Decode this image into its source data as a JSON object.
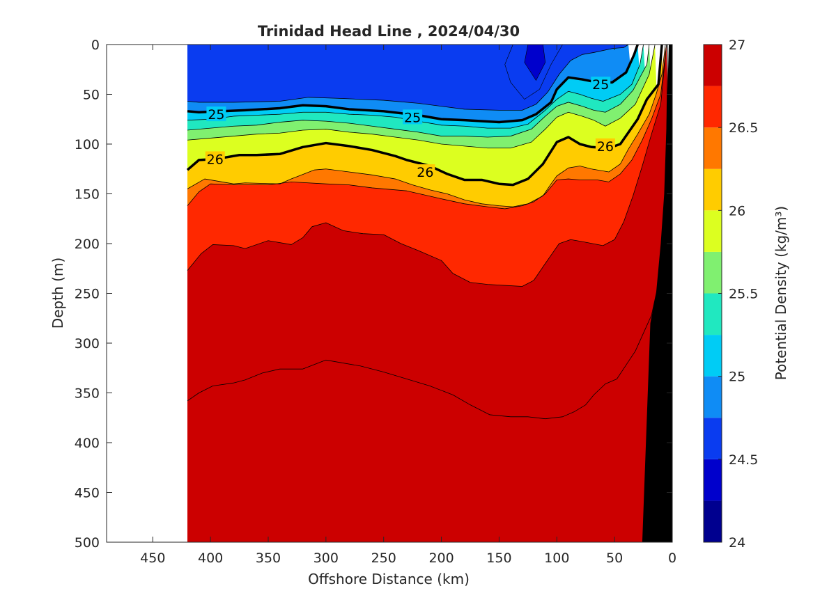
{
  "chart_data": {
    "type": "heatmap",
    "subtype": "filled-contour",
    "title": "Trinidad Head Line , 2024/04/30",
    "xlabel": "Offshore Distance (km)",
    "ylabel": "Depth (m)",
    "xlim": [
      490,
      0
    ],
    "x_reversed": true,
    "ylim": [
      0,
      500
    ],
    "y_reversed": true,
    "xticks": [
      "450",
      "400",
      "350",
      "300",
      "250",
      "200",
      "150",
      "100",
      "50",
      "0"
    ],
    "yticks": [
      "0",
      "50",
      "100",
      "150",
      "200",
      "250",
      "300",
      "350",
      "400",
      "450",
      "500"
    ],
    "data_extent_km": [
      420,
      0
    ],
    "colorbar": {
      "label": "Potential Density (kg/m³)",
      "min": 24,
      "max": 27,
      "step": 0.25,
      "ticks": [
        "24",
        "24.5",
        "25",
        "25.5",
        "26",
        "26.5",
        "27"
      ],
      "colors": [
        "#00008f",
        "#0000cc",
        "#0a3cf0",
        "#0f8cf5",
        "#00ccf5",
        "#20e8c0",
        "#80f070",
        "#dcff20",
        "#ffcc00",
        "#ff7800",
        "#ff2800",
        "#cc0000"
      ]
    },
    "labeled_contours": [
      {
        "level": 25,
        "labels": [
          {
            "text": "25",
            "x": 395,
            "y": 70
          },
          {
            "text": "25",
            "x": 225,
            "y": 73
          },
          {
            "text": "25",
            "x": 62,
            "y": 40
          }
        ]
      },
      {
        "level": 26,
        "labels": [
          {
            "text": "26",
            "x": 396,
            "y": 115
          },
          {
            "text": "26",
            "x": 214,
            "y": 128
          },
          {
            "text": "26",
            "x": 58,
            "y": 102
          }
        ]
      }
    ],
    "contours": [
      {
        "level": 24.75,
        "pts": [
          [
            420,
            57
          ],
          [
            410,
            58
          ],
          [
            380,
            58
          ],
          [
            340,
            57
          ],
          [
            315,
            53
          ],
          [
            290,
            54
          ],
          [
            250,
            56
          ],
          [
            220,
            59
          ],
          [
            180,
            65
          ],
          [
            150,
            66
          ],
          [
            130,
            66
          ],
          [
            118,
            60
          ],
          [
            108,
            48
          ],
          [
            98,
            30
          ],
          [
            88,
            16
          ],
          [
            78,
            10
          ],
          [
            68,
            8
          ],
          [
            52,
            4
          ],
          [
            42,
            3
          ],
          [
            38,
            0
          ]
        ]
      },
      {
        "level": 25.0,
        "pts": [
          [
            420,
            67
          ],
          [
            410,
            68
          ],
          [
            390,
            67
          ],
          [
            370,
            66
          ],
          [
            340,
            64
          ],
          [
            320,
            61
          ],
          [
            300,
            62
          ],
          [
            280,
            65
          ],
          [
            250,
            67
          ],
          [
            220,
            71
          ],
          [
            200,
            75
          ],
          [
            180,
            76
          ],
          [
            150,
            78
          ],
          [
            130,
            76
          ],
          [
            118,
            70
          ],
          [
            105,
            58
          ],
          [
            100,
            45
          ],
          [
            90,
            33
          ],
          [
            78,
            35
          ],
          [
            65,
            38
          ],
          [
            52,
            38
          ],
          [
            40,
            28
          ],
          [
            33,
            10
          ],
          [
            30,
            0
          ]
        ]
      },
      {
        "level": 25.25,
        "pts": [
          [
            420,
            76
          ],
          [
            400,
            75
          ],
          [
            380,
            72
          ],
          [
            360,
            71
          ],
          [
            340,
            70
          ],
          [
            320,
            68
          ],
          [
            300,
            68
          ],
          [
            280,
            70
          ],
          [
            260,
            71
          ],
          [
            240,
            73
          ],
          [
            220,
            77
          ],
          [
            200,
            81
          ],
          [
            180,
            82
          ],
          [
            160,
            84
          ],
          [
            140,
            84
          ],
          [
            125,
            80
          ],
          [
            110,
            66
          ],
          [
            100,
            55
          ],
          [
            90,
            47
          ],
          [
            80,
            50
          ],
          [
            70,
            54
          ],
          [
            60,
            57
          ],
          [
            45,
            50
          ],
          [
            35,
            40
          ],
          [
            28,
            20
          ],
          [
            25,
            0
          ]
        ]
      },
      {
        "level": 25.5,
        "pts": [
          [
            420,
            86
          ],
          [
            400,
            84
          ],
          [
            380,
            82
          ],
          [
            360,
            81
          ],
          [
            340,
            78
          ],
          [
            320,
            76
          ],
          [
            300,
            77
          ],
          [
            280,
            79
          ],
          [
            260,
            82
          ],
          [
            240,
            85
          ],
          [
            220,
            88
          ],
          [
            200,
            92
          ],
          [
            180,
            92
          ],
          [
            160,
            93
          ],
          [
            140,
            92
          ],
          [
            122,
            85
          ],
          [
            110,
            72
          ],
          [
            100,
            62
          ],
          [
            90,
            58
          ],
          [
            78,
            62
          ],
          [
            68,
            66
          ],
          [
            58,
            68
          ],
          [
            45,
            60
          ],
          [
            34,
            46
          ],
          [
            22,
            20
          ],
          [
            20,
            0
          ]
        ]
      },
      {
        "level": 25.75,
        "pts": [
          [
            420,
            96
          ],
          [
            400,
            94
          ],
          [
            380,
            92
          ],
          [
            360,
            90
          ],
          [
            340,
            89
          ],
          [
            320,
            86
          ],
          [
            300,
            85
          ],
          [
            280,
            88
          ],
          [
            260,
            90
          ],
          [
            240,
            93
          ],
          [
            220,
            96
          ],
          [
            200,
            100
          ],
          [
            180,
            102
          ],
          [
            160,
            104
          ],
          [
            140,
            104
          ],
          [
            122,
            98
          ],
          [
            110,
            85
          ],
          [
            100,
            73
          ],
          [
            90,
            68
          ],
          [
            78,
            72
          ],
          [
            68,
            76
          ],
          [
            58,
            82
          ],
          [
            45,
            74
          ],
          [
            32,
            60
          ],
          [
            20,
            30
          ],
          [
            15,
            0
          ]
        ]
      },
      {
        "level": 26.0,
        "pts": [
          [
            420,
            126
          ],
          [
            410,
            116
          ],
          [
            395,
            115
          ],
          [
            375,
            111
          ],
          [
            360,
            111
          ],
          [
            340,
            110
          ],
          [
            320,
            103
          ],
          [
            300,
            99
          ],
          [
            280,
            102
          ],
          [
            260,
            106
          ],
          [
            240,
            112
          ],
          [
            230,
            116
          ],
          [
            210,
            122
          ],
          [
            195,
            130
          ],
          [
            180,
            136
          ],
          [
            165,
            136
          ],
          [
            150,
            140
          ],
          [
            138,
            141
          ],
          [
            125,
            135
          ],
          [
            112,
            120
          ],
          [
            100,
            98
          ],
          [
            90,
            93
          ],
          [
            80,
            100
          ],
          [
            70,
            103
          ],
          [
            55,
            104
          ],
          [
            45,
            100
          ],
          [
            30,
            75
          ],
          [
            22,
            55
          ],
          [
            12,
            40
          ],
          [
            9,
            0
          ]
        ]
      },
      {
        "level": 26.25,
        "pts": [
          [
            420,
            145
          ],
          [
            405,
            135
          ],
          [
            380,
            140
          ],
          [
            370,
            139
          ],
          [
            340,
            140
          ],
          [
            330,
            135
          ],
          [
            310,
            126
          ],
          [
            300,
            125
          ],
          [
            280,
            128
          ],
          [
            260,
            131
          ],
          [
            240,
            135
          ],
          [
            225,
            141
          ],
          [
            210,
            146
          ],
          [
            195,
            150
          ],
          [
            180,
            156
          ],
          [
            165,
            160
          ],
          [
            150,
            162
          ],
          [
            138,
            163
          ],
          [
            125,
            160
          ],
          [
            112,
            152
          ],
          [
            105,
            140
          ],
          [
            100,
            132
          ],
          [
            90,
            124
          ],
          [
            80,
            122
          ],
          [
            70,
            125
          ],
          [
            55,
            128
          ],
          [
            45,
            120
          ],
          [
            38,
            105
          ],
          [
            30,
            90
          ],
          [
            20,
            70
          ],
          [
            14,
            50
          ],
          [
            9,
            30
          ],
          [
            6,
            0
          ]
        ]
      },
      {
        "level": 26.5,
        "pts": [
          [
            420,
            162
          ],
          [
            410,
            148
          ],
          [
            400,
            140
          ],
          [
            380,
            141
          ],
          [
            350,
            141
          ],
          [
            330,
            138
          ],
          [
            300,
            140
          ],
          [
            280,
            141
          ],
          [
            260,
            144
          ],
          [
            230,
            147
          ],
          [
            200,
            155
          ],
          [
            180,
            160
          ],
          [
            160,
            163
          ],
          [
            145,
            165
          ],
          [
            130,
            162
          ],
          [
            120,
            158
          ],
          [
            110,
            150
          ],
          [
            100,
            136
          ],
          [
            90,
            135
          ],
          [
            80,
            136
          ],
          [
            65,
            136
          ],
          [
            55,
            138
          ],
          [
            45,
            130
          ],
          [
            35,
            116
          ],
          [
            26,
            96
          ],
          [
            18,
            75
          ],
          [
            10,
            50
          ],
          [
            5,
            0
          ]
        ]
      },
      {
        "level": 26.75,
        "pts": [
          [
            420,
            227
          ],
          [
            408,
            210
          ],
          [
            398,
            201
          ],
          [
            380,
            202
          ],
          [
            370,
            205
          ],
          [
            350,
            197
          ],
          [
            330,
            201
          ],
          [
            320,
            194
          ],
          [
            312,
            183
          ],
          [
            300,
            179
          ],
          [
            285,
            187
          ],
          [
            268,
            190
          ],
          [
            250,
            191
          ],
          [
            235,
            200
          ],
          [
            220,
            207
          ],
          [
            200,
            217
          ],
          [
            190,
            230
          ],
          [
            175,
            239
          ],
          [
            160,
            241
          ],
          [
            145,
            242
          ],
          [
            130,
            243
          ],
          [
            120,
            237
          ],
          [
            110,
            220
          ],
          [
            98,
            200
          ],
          [
            88,
            196
          ],
          [
            78,
            198
          ],
          [
            60,
            202
          ],
          [
            50,
            196
          ],
          [
            42,
            178
          ],
          [
            34,
            152
          ],
          [
            26,
            122
          ],
          [
            18,
            90
          ],
          [
            10,
            60
          ],
          [
            5,
            0
          ]
        ]
      },
      {
        "level": 27.0,
        "pts": [
          [
            420,
            358
          ],
          [
            410,
            350
          ],
          [
            398,
            343
          ],
          [
            380,
            340
          ],
          [
            370,
            337
          ],
          [
            355,
            330
          ],
          [
            340,
            326
          ],
          [
            320,
            326
          ],
          [
            300,
            317
          ],
          [
            290,
            319
          ],
          [
            270,
            323
          ],
          [
            250,
            329
          ],
          [
            230,
            336
          ],
          [
            210,
            343
          ],
          [
            190,
            352
          ],
          [
            175,
            362
          ],
          [
            158,
            372
          ],
          [
            140,
            374
          ],
          [
            125,
            374
          ],
          [
            110,
            376
          ],
          [
            95,
            374
          ],
          [
            85,
            369
          ],
          [
            75,
            362
          ],
          [
            68,
            352
          ],
          [
            58,
            341
          ],
          [
            48,
            336
          ],
          [
            40,
            322
          ],
          [
            32,
            308
          ],
          [
            25,
            290
          ],
          [
            18,
            272
          ],
          [
            12,
            240
          ],
          [
            8,
            200
          ],
          [
            6,
            150
          ],
          [
            5,
            100
          ],
          [
            4,
            0
          ]
        ]
      }
    ],
    "bathymetry": [
      [
        26,
        500
      ],
      [
        19,
        280
      ],
      [
        14,
        250
      ],
      [
        10,
        200
      ],
      [
        7,
        150
      ],
      [
        5,
        80
      ],
      [
        3,
        0
      ],
      [
        0,
        0
      ],
      [
        0,
        500
      ]
    ]
  }
}
